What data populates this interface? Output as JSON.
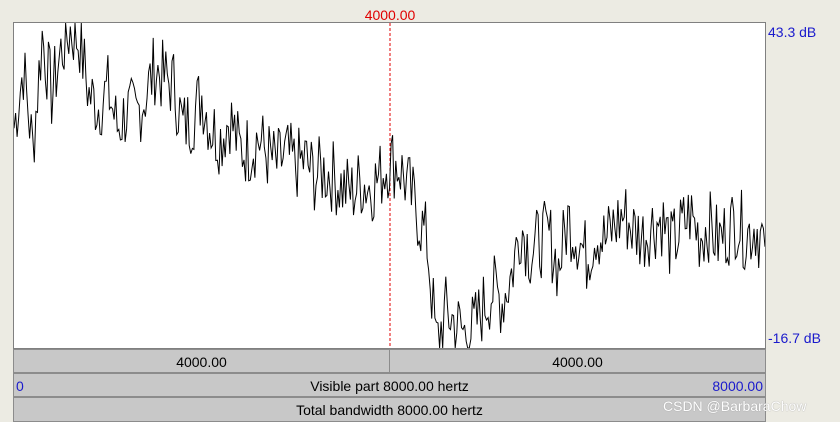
{
  "cursor": {
    "frequency_label": "4000.00",
    "color": "#e00000"
  },
  "y_axis": {
    "top_label": "43.3 dB",
    "bottom_label": "-16.7 dB",
    "max_db": 43.3,
    "min_db": -16.7
  },
  "x_axis": {
    "min_hz": 0,
    "max_hz": 8000
  },
  "bars": {
    "left_half": "4000.00",
    "right_half": "4000.00",
    "visible_start": "0",
    "visible_part": "Visible part 8000.00 hertz",
    "visible_end": "8000.00",
    "total_bandwidth": "Total bandwidth 8000.00 hertz"
  },
  "watermark": "CSDN @BarbaraChow",
  "colors": {
    "label_blue": "#1a1acc",
    "spectrum": "#000000",
    "bar_bg": "#c8c8c8"
  },
  "chart_data": {
    "type": "line",
    "x": [
      0,
      100,
      200,
      300,
      400,
      500,
      600,
      700,
      800,
      900,
      1000,
      1100,
      1200,
      1300,
      1400,
      1500,
      1600,
      1700,
      1800,
      1900,
      2000,
      2100,
      2200,
      2300,
      2400,
      2500,
      2600,
      2700,
      2800,
      2900,
      3000,
      3100,
      3200,
      3300,
      3400,
      3500,
      3600,
      3700,
      3800,
      3900,
      4000,
      4100,
      4200,
      4300,
      4400,
      4500,
      4600,
      4700,
      4800,
      4900,
      5000,
      5100,
      5200,
      5300,
      5400,
      5500,
      5600,
      5700,
      5800,
      5900,
      6000,
      6100,
      6200,
      6300,
      6400,
      6500,
      6600,
      6700,
      6800,
      6900,
      7000,
      7100,
      7200,
      7300,
      7400,
      7500,
      7600,
      7700,
      7800,
      7900,
      8000
    ],
    "series": [
      {
        "values": [
          24,
          35,
          20,
          41,
          30,
          38,
          42,
          40,
          30,
          28,
          31,
          24,
          27,
          26,
          30,
          35,
          33,
          32,
          24,
          26,
          30,
          24,
          22,
          26,
          20,
          20,
          22,
          19,
          17,
          19,
          17,
          18,
          15,
          16,
          15,
          13,
          12,
          14,
          13,
          15,
          18,
          17,
          13,
          8,
          3,
          -16,
          -10,
          -12,
          -14,
          -13,
          -9,
          -6,
          -8,
          -3,
          6,
          1,
          3,
          4,
          -2,
          7,
          4,
          0,
          5,
          3,
          6,
          8,
          5,
          4,
          6,
          7,
          2,
          5,
          8,
          4,
          6,
          3,
          5,
          7,
          4,
          6,
          2
        ]
      }
    ],
    "ylim": [
      -16.7,
      43.3
    ],
    "xlim": [
      0,
      8000
    ],
    "grid": false
  }
}
